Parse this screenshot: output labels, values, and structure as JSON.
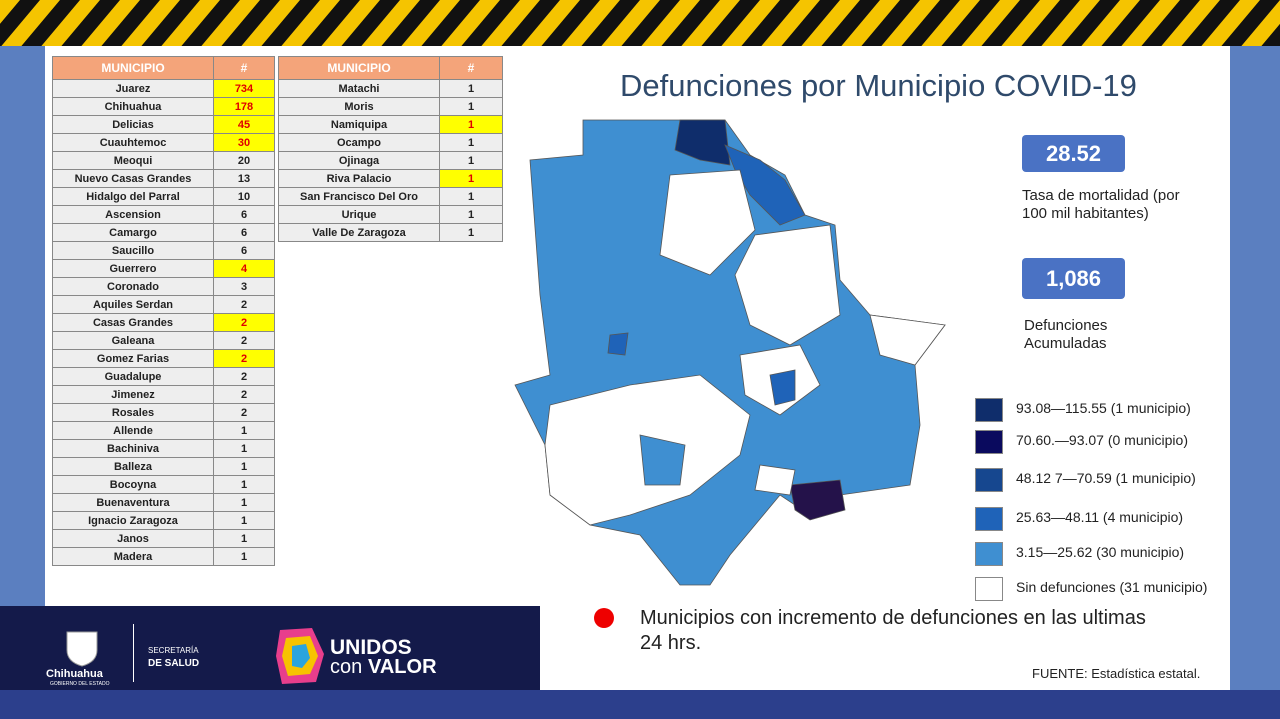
{
  "title": "Defunciones por Municipio COVID-19",
  "table_left": {
    "header": [
      "MUNICIPIO",
      "#"
    ],
    "rows": [
      {
        "municipio": "Juarez",
        "count": 734,
        "highlight": true
      },
      {
        "municipio": "Chihuahua",
        "count": 178,
        "highlight": true
      },
      {
        "municipio": "Delicias",
        "count": 45,
        "highlight": true
      },
      {
        "municipio": "Cuauhtemoc",
        "count": 30,
        "highlight": true
      },
      {
        "municipio": "Meoqui",
        "count": 20,
        "highlight": false
      },
      {
        "municipio": "Nuevo Casas Grandes",
        "count": 13,
        "highlight": false
      },
      {
        "municipio": "Hidalgo del Parral",
        "count": 10,
        "highlight": false
      },
      {
        "municipio": "Ascension",
        "count": 6,
        "highlight": false
      },
      {
        "municipio": "Camargo",
        "count": 6,
        "highlight": false
      },
      {
        "municipio": "Saucillo",
        "count": 6,
        "highlight": false
      },
      {
        "municipio": "Guerrero",
        "count": 4,
        "highlight": true
      },
      {
        "municipio": "Coronado",
        "count": 3,
        "highlight": false
      },
      {
        "municipio": "Aquiles Serdan",
        "count": 2,
        "highlight": false
      },
      {
        "municipio": "Casas Grandes",
        "count": 2,
        "highlight": true
      },
      {
        "municipio": "Galeana",
        "count": 2,
        "highlight": false
      },
      {
        "municipio": "Gomez Farias",
        "count": 2,
        "highlight": true
      },
      {
        "municipio": "Guadalupe",
        "count": 2,
        "highlight": false
      },
      {
        "municipio": "Jimenez",
        "count": 2,
        "highlight": false
      },
      {
        "municipio": "Rosales",
        "count": 2,
        "highlight": false
      },
      {
        "municipio": "Allende",
        "count": 1,
        "highlight": false
      },
      {
        "municipio": "Bachiniva",
        "count": 1,
        "highlight": false
      },
      {
        "municipio": "Balleza",
        "count": 1,
        "highlight": false
      },
      {
        "municipio": "Bocoyna",
        "count": 1,
        "highlight": false
      },
      {
        "municipio": "Buenaventura",
        "count": 1,
        "highlight": false
      },
      {
        "municipio": "Ignacio Zaragoza",
        "count": 1,
        "highlight": false
      },
      {
        "municipio": "Janos",
        "count": 1,
        "highlight": false
      },
      {
        "municipio": "Madera",
        "count": 1,
        "highlight": false
      }
    ]
  },
  "table_right": {
    "header": [
      "MUNICIPIO",
      "#"
    ],
    "rows": [
      {
        "municipio": "Matachi",
        "count": 1,
        "highlight": false
      },
      {
        "municipio": "Moris",
        "count": 1,
        "highlight": false
      },
      {
        "municipio": "Namiquipa",
        "count": 1,
        "highlight": true
      },
      {
        "municipio": "Ocampo",
        "count": 1,
        "highlight": false
      },
      {
        "municipio": "Ojinaga",
        "count": 1,
        "highlight": false
      },
      {
        "municipio": "Riva Palacio",
        "count": 1,
        "highlight": true
      },
      {
        "municipio": "San Francisco Del Oro",
        "count": 1,
        "highlight": false
      },
      {
        "municipio": "Urique",
        "count": 1,
        "highlight": false
      },
      {
        "municipio": "Valle De Zaragoza",
        "count": 1,
        "highlight": false
      }
    ]
  },
  "stats": [
    {
      "value": "28.52",
      "label": "Tasa de mortalidad (por 100 mil habitantes)"
    },
    {
      "value": "1,086",
      "label": "Defunciones Acumuladas"
    }
  ],
  "legend": [
    {
      "label": "93.08—115.55 (1 municipio)",
      "color": "#0f2d6b"
    },
    {
      "label": "70.60.—93.07 (0 municipio)",
      "color": "#0a0a5e"
    },
    {
      "label": "48.12 7—70.59 (1 municipio)",
      "color": "#16478f"
    },
    {
      "label": "25.63—48.11 (4 municipio)",
      "color": "#1f63b8"
    },
    {
      "label": "3.15—25.62 (30 municipio)",
      "color": "#3f8fd1"
    },
    {
      "label": "Sin defunciones (31 municipio)",
      "color": "#ffffff"
    }
  ],
  "note": "Municipios con incremento de defunciones en las ultimas 24 hrs.",
  "source": "FUENTE: Estadística estatal.",
  "footer": {
    "state": "Chihuahua",
    "government": "GOBIERNO DEL ESTADO",
    "secretaria": "SECRETARÍA",
    "salud": "DE SALUD",
    "brand_top": "UNIDOS",
    "brand_con": "con",
    "brand_valor": "VALOR"
  }
}
